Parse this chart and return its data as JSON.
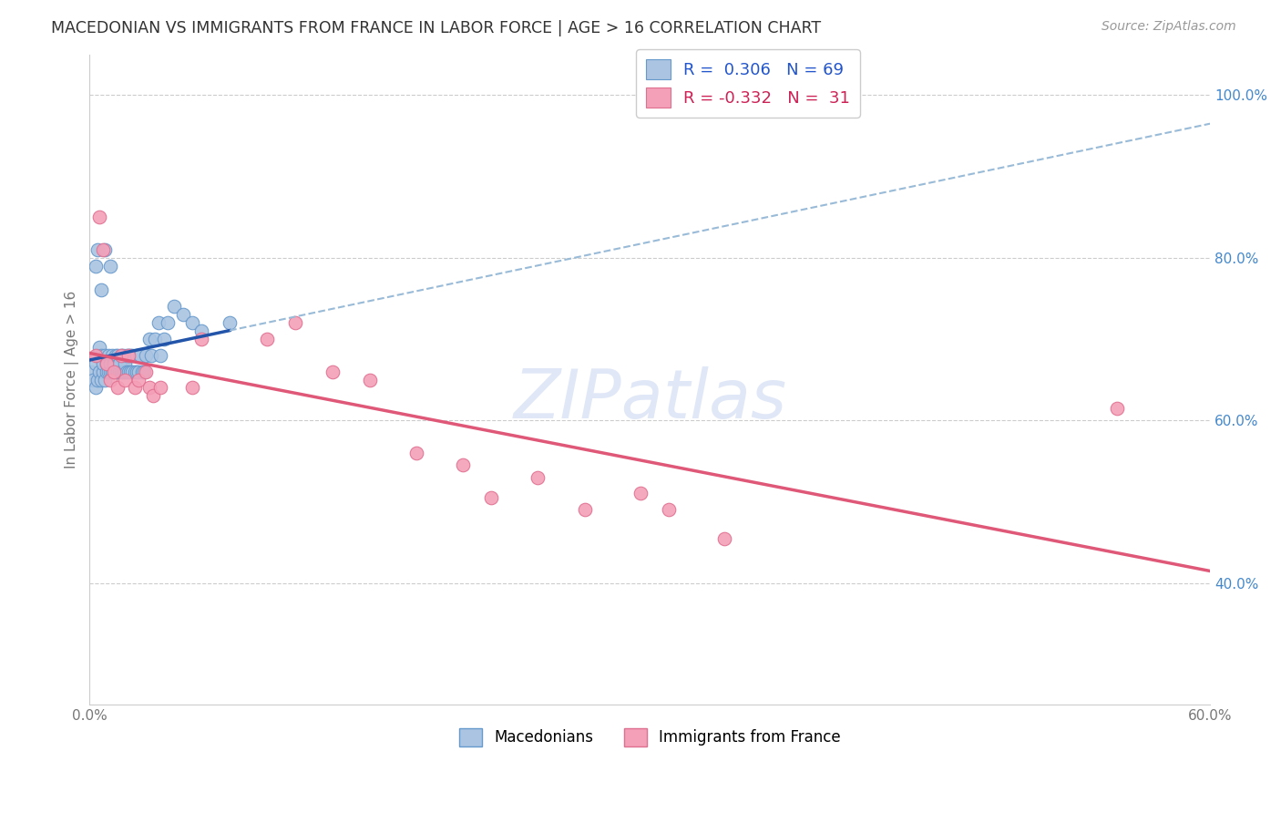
{
  "title": "MACEDONIAN VS IMMIGRANTS FROM FRANCE IN LABOR FORCE | AGE > 16 CORRELATION CHART",
  "source": "Source: ZipAtlas.com",
  "ylabel_label": "In Labor Force | Age > 16",
  "xlim": [
    0.0,
    0.6
  ],
  "ylim": [
    0.25,
    1.05
  ],
  "x_ticks": [
    0.0,
    0.1,
    0.2,
    0.3,
    0.4,
    0.5,
    0.6
  ],
  "x_tick_labels": [
    "0.0%",
    "",
    "",
    "",
    "",
    "",
    "60.0%"
  ],
  "y_ticks_right": [
    0.4,
    0.6,
    0.8,
    1.0
  ],
  "y_tick_labels_right": [
    "40.0%",
    "60.0%",
    "80.0%",
    "100.0%"
  ],
  "macedonian_R": 0.306,
  "macedonian_N": 69,
  "france_R": -0.332,
  "france_N": 31,
  "blue_scatter_color": "#aac4e2",
  "blue_edge_color": "#6699cc",
  "blue_line_color": "#2255aa",
  "blue_dash_color": "#99bbd8",
  "pink_scatter_color": "#f4a0b8",
  "pink_edge_color": "#e07090",
  "pink_line_color": "#e05878",
  "watermark_color": "#ccd8f0",
  "macedonian_x": [
    0.001,
    0.002,
    0.003,
    0.003,
    0.004,
    0.004,
    0.005,
    0.005,
    0.006,
    0.006,
    0.007,
    0.007,
    0.008,
    0.008,
    0.009,
    0.009,
    0.01,
    0.01,
    0.011,
    0.011,
    0.012,
    0.012,
    0.013,
    0.013,
    0.014,
    0.014,
    0.015,
    0.015,
    0.016,
    0.016,
    0.017,
    0.017,
    0.018,
    0.018,
    0.019,
    0.019,
    0.02,
    0.02,
    0.021,
    0.021,
    0.022,
    0.022,
    0.023,
    0.023,
    0.024,
    0.025,
    0.025,
    0.026,
    0.027,
    0.028,
    0.029,
    0.03,
    0.032,
    0.033,
    0.035,
    0.037,
    0.038,
    0.04,
    0.042,
    0.045,
    0.003,
    0.004,
    0.006,
    0.008,
    0.011,
    0.05,
    0.055,
    0.06,
    0.075
  ],
  "macedonian_y": [
    0.66,
    0.65,
    0.64,
    0.67,
    0.65,
    0.68,
    0.66,
    0.69,
    0.65,
    0.68,
    0.66,
    0.67,
    0.65,
    0.68,
    0.66,
    0.67,
    0.66,
    0.68,
    0.66,
    0.67,
    0.66,
    0.68,
    0.66,
    0.67,
    0.66,
    0.68,
    0.66,
    0.68,
    0.66,
    0.67,
    0.66,
    0.68,
    0.66,
    0.68,
    0.66,
    0.67,
    0.66,
    0.68,
    0.66,
    0.68,
    0.66,
    0.68,
    0.66,
    0.68,
    0.66,
    0.66,
    0.68,
    0.66,
    0.68,
    0.66,
    0.66,
    0.68,
    0.7,
    0.68,
    0.7,
    0.72,
    0.68,
    0.7,
    0.72,
    0.74,
    0.79,
    0.81,
    0.76,
    0.81,
    0.79,
    0.73,
    0.72,
    0.71,
    0.72
  ],
  "france_x": [
    0.003,
    0.005,
    0.007,
    0.009,
    0.011,
    0.013,
    0.015,
    0.017,
    0.019,
    0.021,
    0.024,
    0.026,
    0.03,
    0.032,
    0.034,
    0.038,
    0.055,
    0.06,
    0.095,
    0.11,
    0.13,
    0.15,
    0.175,
    0.2,
    0.215,
    0.24,
    0.265,
    0.295,
    0.31,
    0.34,
    0.55
  ],
  "france_y": [
    0.68,
    0.85,
    0.81,
    0.67,
    0.65,
    0.66,
    0.64,
    0.68,
    0.65,
    0.68,
    0.64,
    0.65,
    0.66,
    0.64,
    0.63,
    0.64,
    0.64,
    0.7,
    0.7,
    0.72,
    0.66,
    0.65,
    0.56,
    0.545,
    0.505,
    0.53,
    0.49,
    0.51,
    0.49,
    0.455,
    0.615
  ]
}
